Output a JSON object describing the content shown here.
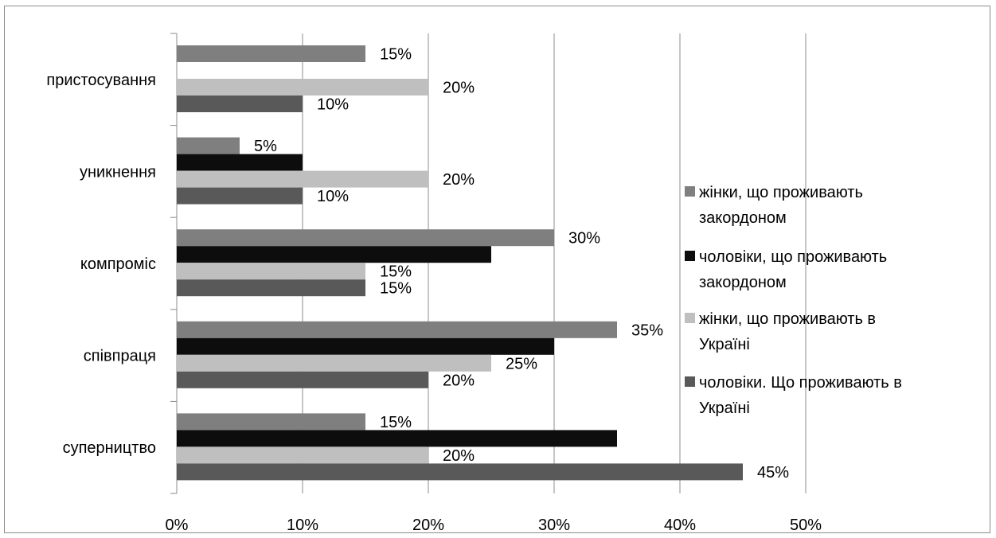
{
  "chart_data": {
    "type": "bar",
    "orientation": "horizontal",
    "categories": [
      "суперництво",
      "співпраця",
      "компроміс",
      "уникнення",
      "пристосування"
    ],
    "series": [
      {
        "name": "жінки, що проживають закордоном",
        "color": "#7f7f7f",
        "values": [
          15,
          35,
          30,
          5,
          15
        ],
        "labels": [
          "15%",
          "35%",
          "30%",
          "5%",
          "15%"
        ]
      },
      {
        "name": "чоловіки, що проживають закордоном",
        "color": "#0d0d0d",
        "values": [
          35,
          30,
          25,
          10,
          null
        ],
        "labels": [
          null,
          null,
          null,
          null,
          null
        ]
      },
      {
        "name": "жінки, що проживають в Україні",
        "color": "#bfbfbf",
        "values": [
          20,
          25,
          15,
          20,
          20
        ],
        "labels": [
          "20%",
          "25%",
          "15%",
          "20%",
          "20%"
        ]
      },
      {
        "name": "чоловіки. Що проживають в Україні",
        "color": "#595959",
        "values": [
          45,
          20,
          15,
          10,
          10
        ],
        "labels": [
          "45%",
          "20%",
          "15%",
          "10%",
          "10%"
        ]
      }
    ],
    "xlim": [
      0,
      50
    ],
    "xticks": [
      "0%",
      "10%",
      "20%",
      "30%",
      "40%",
      "50%"
    ],
    "grid": true,
    "legend_position": "right"
  }
}
